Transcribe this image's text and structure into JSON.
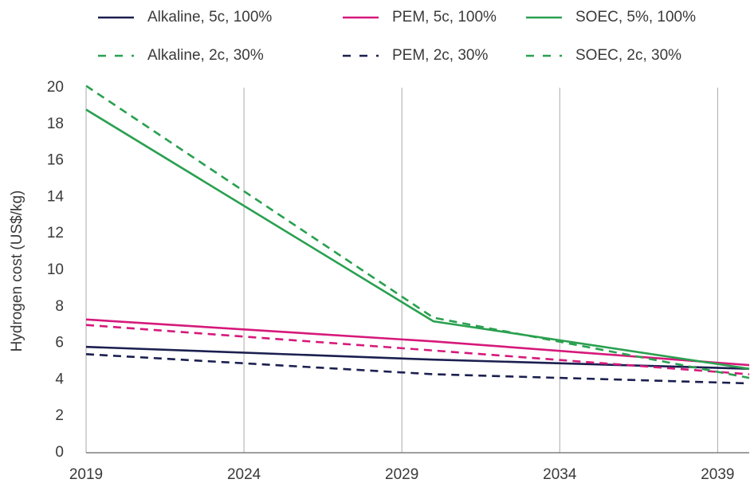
{
  "chart_data": {
    "type": "line",
    "y_label": "Hydrogen cost (US$/kg)",
    "x": [
      2019,
      2030,
      2040
    ],
    "xlim": [
      2019,
      2040
    ],
    "xticks": [
      2019,
      2024,
      2029,
      2034,
      2039
    ],
    "ylim": [
      0,
      20
    ],
    "yticks": [
      0,
      2,
      4,
      6,
      8,
      10,
      12,
      14,
      16,
      18,
      20
    ],
    "grid": "x",
    "series": [
      {
        "name": "Alkaline, 5c, 100%",
        "color": "#1b1f4f",
        "legend_color": "#1b1f4f",
        "dashed": false,
        "values": [
          5.8,
          5.1,
          4.6
        ]
      },
      {
        "name": "PEM, 5c, 100%",
        "color": "#d6197b",
        "legend_color": "#d6197b",
        "dashed": false,
        "values": [
          7.3,
          6.1,
          4.8
        ]
      },
      {
        "name": "SOEC, 5%, 100%",
        "color": "#2aa050",
        "legend_color": "#2aa050",
        "dashed": false,
        "values": [
          18.8,
          7.2,
          4.6
        ]
      },
      {
        "name": "Alkaline, 2c, 30%",
        "color": "#1b1f4f",
        "legend_color": "#2aa050",
        "dashed": true,
        "values": [
          5.4,
          4.3,
          3.8
        ]
      },
      {
        "name": "PEM, 2c, 30%",
        "color": "#d6197b",
        "legend_color": "#1b1f4f",
        "dashed": true,
        "values": [
          7.0,
          5.6,
          4.3
        ]
      },
      {
        "name": "SOEC, 2c, 30%",
        "color": "#2aa050",
        "legend_color": "#2aa050",
        "dashed": true,
        "values": [
          20.1,
          7.4,
          4.1
        ]
      }
    ]
  }
}
